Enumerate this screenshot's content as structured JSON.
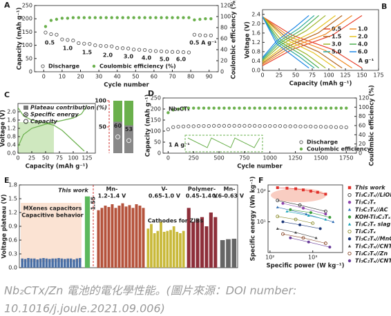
{
  "chart_data": [
    {
      "type": "scatter",
      "panel": "A",
      "xlabel": "Cycle number",
      "ylabel": "Capacity (mAh g⁻¹)",
      "y2label": "Coulombic efficiency (%)",
      "y2color": "#6ab04c",
      "xlim": [
        -5,
        95
      ],
      "xticks": [
        0,
        10,
        20,
        30,
        40,
        50,
        60,
        70,
        80,
        90
      ],
      "ylim": [
        0,
        250
      ],
      "yticks": [
        0,
        50,
        100,
        150,
        200,
        250
      ],
      "y2lim": [
        0,
        120
      ],
      "y2ticks": [
        0,
        20,
        40,
        60,
        80,
        100,
        120
      ],
      "x": [
        1,
        4,
        7,
        10,
        13,
        16,
        19,
        22,
        25,
        28,
        31,
        34,
        37,
        40,
        43,
        46,
        49,
        52,
        55,
        58,
        61,
        64,
        67,
        70,
        73,
        76,
        79,
        82,
        85,
        88,
        91
      ],
      "series": [
        {
          "name": "Discharge",
          "color": "#555555",
          "marker": "open",
          "values": [
            148,
            142,
            140,
            122,
            120,
            118,
            108,
            106,
            105,
            100,
            98,
            97,
            96,
            90,
            89,
            88,
            84,
            83,
            82,
            79,
            78,
            77,
            76,
            75,
            75,
            74,
            73,
            140,
            138,
            137,
            137
          ]
        },
        {
          "name": "Coulombic efficiency (%)",
          "color": "#6ab04c",
          "marker": "circle",
          "axis": "y2",
          "values": [
            82,
            93,
            95,
            97,
            97,
            98,
            98,
            98,
            98,
            98,
            98,
            98,
            98,
            98,
            98,
            98,
            98,
            98,
            98,
            98,
            98,
            98,
            98,
            98,
            98,
            98,
            98,
            94,
            95,
            96,
            96
          ]
        }
      ],
      "annotations": [
        {
          "text": "0.5"
        },
        {
          "text": "1.0"
        },
        {
          "text": "1.5"
        },
        {
          "text": "2.0"
        },
        {
          "text": "3.0"
        },
        {
          "text": "4.0"
        },
        {
          "text": "5.0"
        },
        {
          "text": "6.0"
        },
        {
          "text": "0.5 A g⁻¹"
        }
      ]
    },
    {
      "type": "line",
      "panel": "B",
      "xlabel": "Capacity (mAh g⁻¹)",
      "ylabel": "Voltage (V)",
      "xlim": [
        0,
        175
      ],
      "xticks": [
        0,
        25,
        50,
        75,
        100,
        125,
        150,
        175
      ],
      "ylim": [
        0,
        2.6
      ],
      "yticks": [
        {
          "value": 0,
          "label": "0.0"
        },
        0.4,
        0.8,
        1.2,
        1.6,
        {
          "value": 2,
          "label": "2.0"
        },
        2.4
      ],
      "series": [
        {
          "name": "0.5",
          "color": "#e8412c",
          "x": [
            0,
            45,
            105,
            150,
            null,
            0,
            45,
            105,
            150
          ],
          "values": [
            2.3,
            1.5,
            0.9,
            0.1,
            null,
            0.2,
            0.9,
            1.5,
            2.35
          ]
        },
        {
          "name": "1.0",
          "color": "#f08a24",
          "x": [
            0,
            40,
            95,
            135,
            null,
            0,
            40,
            95,
            135
          ],
          "values": [
            2.3,
            1.45,
            0.85,
            0.1,
            null,
            0.25,
            0.95,
            1.55,
            2.35
          ]
        },
        {
          "name": "1.5",
          "color": "#b5651d",
          "x": [
            0,
            36,
            84,
            120,
            null,
            0,
            36,
            84,
            120
          ],
          "values": [
            2.3,
            1.4,
            0.8,
            0.1,
            null,
            0.3,
            1.0,
            1.6,
            2.35
          ]
        },
        {
          "name": "2.0",
          "color": "#e6c220",
          "x": [
            0,
            33,
            77,
            110,
            null,
            0,
            33,
            77,
            110
          ],
          "values": [
            2.3,
            1.35,
            0.75,
            0.1,
            null,
            0.35,
            1.05,
            1.65,
            2.35
          ]
        },
        {
          "name": "3.0",
          "color": "#9fb52a",
          "x": [
            0,
            28,
            66,
            95,
            null,
            0,
            28,
            66,
            95
          ],
          "values": [
            2.3,
            1.3,
            0.7,
            0.1,
            null,
            0.4,
            1.1,
            1.7,
            2.35
          ]
        },
        {
          "name": "4.0",
          "color": "#4caf50",
          "x": [
            0,
            25,
            60,
            85,
            null,
            0,
            25,
            60,
            85
          ],
          "values": [
            2.3,
            1.25,
            0.65,
            0.1,
            null,
            0.45,
            1.15,
            1.75,
            2.35
          ]
        },
        {
          "name": "5.0",
          "color": "#26a69a",
          "x": [
            0,
            23,
            55,
            78,
            null,
            0,
            23,
            55,
            78
          ],
          "values": [
            2.3,
            1.2,
            0.6,
            0.1,
            null,
            0.5,
            1.2,
            1.8,
            2.35
          ]
        },
        {
          "name": "6.0",
          "color": "#1e88e5",
          "x": [
            0,
            21,
            49,
            70,
            null,
            0,
            21,
            49,
            70
          ],
          "values": [
            2.3,
            1.15,
            0.55,
            0.1,
            null,
            0.55,
            1.25,
            1.85,
            2.35
          ]
        }
      ],
      "annotations": [
        {
          "text": "A g⁻¹"
        }
      ]
    },
    {
      "type": "line",
      "panel": "C",
      "xlabel": "Capacity (mAh g⁻¹)",
      "ylabel": "Voltage (V)",
      "xlim": [
        0,
        140
      ],
      "xticks": [
        0,
        25,
        50,
        75,
        100,
        125
      ],
      "ylim": [
        0,
        2.4
      ],
      "yticks": [
        {
          "value": 0,
          "label": "0.0"
        },
        0.4,
        0.8,
        1.2,
        1.6,
        {
          "value": 2,
          "label": "2.0"
        }
      ],
      "shade": {
        "x": [
          0,
          65
        ],
        "y": [
          0,
          1.5
        ],
        "color": "#cfe8bf"
      },
      "series": [
        {
          "color": "#6ab04c",
          "x": [
            0,
            10,
            25,
            50,
            65,
            80,
            100,
            120
          ],
          "values": [
            2.2,
            1.8,
            1.6,
            1.45,
            1.35,
            1.1,
            0.6,
            0.1
          ]
        },
        {
          "color": "#6ab04c",
          "x": [
            0,
            10,
            25,
            50,
            75,
            100,
            115,
            125
          ],
          "values": [
            0.3,
            0.9,
            1.2,
            1.4,
            1.55,
            1.7,
            1.9,
            2.3
          ]
        }
      ],
      "legend": [
        "Plateau contribution (%)",
        "Specific energy",
        "Capacity"
      ],
      "inset": {
        "values": [
          60,
          53
        ],
        "ylim": [
          0,
          100
        ],
        "yticks": [
          50,
          100
        ],
        "color": "#888888",
        "top_color": "#6ab04c",
        "tick_color": "#d0312d"
      }
    },
    {
      "type": "scatter",
      "panel": "D",
      "xlabel": "Cycle number",
      "ylabel": "Capacity (mAh g⁻¹)",
      "y2label": "Coulombic efficiency (%)",
      "y2color": "#6ab04c",
      "xlim": [
        -50,
        1850
      ],
      "xticks": [
        0,
        250,
        500,
        750,
        1000,
        1250,
        1500,
        1750
      ],
      "ylim": [
        0,
        250
      ],
      "yticks": [
        0,
        50,
        100,
        150,
        200,
        250
      ],
      "y2lim": [
        0,
        120
      ],
      "y2ticks": [
        0,
        20,
        40,
        60,
        80,
        100,
        120
      ],
      "x": [
        0,
        50,
        100,
        150,
        200,
        250,
        300,
        350,
        400,
        450,
        500,
        550,
        600,
        650,
        700,
        750,
        800,
        850,
        900,
        950,
        1000,
        1050,
        1100,
        1150,
        1200,
        1250,
        1300,
        1350,
        1400,
        1450,
        1500,
        1550,
        1600,
        1650,
        1700,
        1750
      ],
      "series": [
        {
          "name": "Discharge",
          "color": "#555555",
          "marker": "open",
          "values": [
            108,
            118,
            120,
            121,
            122,
            122,
            123,
            123,
            123,
            124,
            124,
            124,
            124,
            124,
            124,
            124,
            124,
            124,
            123,
            123,
            123,
            123,
            123,
            122,
            122,
            122,
            121,
            121,
            121,
            120,
            120,
            119,
            119,
            118,
            118,
            117
          ]
        },
        {
          "name": "Coulombic efficiency",
          "color": "#6ab04c",
          "marker": "circle",
          "axis": "y2",
          "values": [
            88,
            94,
            96,
            97,
            98,
            98,
            98,
            98,
            98,
            98,
            98,
            98,
            98,
            98,
            98,
            98,
            98,
            98,
            98,
            98,
            98,
            98,
            98,
            98,
            98,
            98,
            98,
            98,
            98,
            98,
            98,
            98,
            98,
            98,
            98,
            98
          ]
        }
      ],
      "annotations": [
        {
          "text": "Nb₂CTₓ"
        },
        {
          "text": "1 A g⁻¹"
        }
      ]
    },
    {
      "type": "bar",
      "panel": "E",
      "ylabel": "Voltage plateau (V)",
      "ylim": [
        0,
        1.8
      ],
      "yticks": [
        {
          "value": 0,
          "label": "0.0"
        },
        0.3,
        0.6,
        0.9,
        1.2,
        1.5,
        1.8
      ],
      "series": [
        {
          "color": "#4a6fa5",
          "values": [
            0.2,
            0.19,
            0.21,
            0.2,
            0.2,
            0.18,
            0.2,
            0.21,
            0.2,
            0.19,
            0.2,
            0.2,
            0.21,
            0.2,
            0.19,
            0.2,
            0.2,
            0.18,
            0.2,
            0.21
          ]
        },
        {
          "color": "#5cb85c",
          "values": [
            1.55
          ]
        },
        {
          "color": "#b5533c",
          "values": [
            1.25,
            1.3,
            1.35,
            1.32,
            1.38,
            1.3,
            1.35,
            1.4,
            1.33,
            1.36,
            1.3,
            1.38,
            1.35,
            1.3
          ]
        },
        {
          "color": "#c9b93a",
          "values": [
            0.85,
            0.95,
            0.75,
            0.8,
            1.0,
            0.78,
            0.8,
            0.82,
            0.9,
            0.78,
            0.75,
            0.8
          ]
        },
        {
          "color": "#8e2f3a",
          "values": [
            1.3,
            1.0,
            1.05,
            1.1,
            0.9,
            1.2,
            1.1
          ]
        },
        {
          "color": "#666666",
          "values": [
            0.6,
            0.62,
            0.63
          ]
        }
      ],
      "annotations": [
        {
          "text": "This work",
          "color": "#d0312d"
        },
        {
          "text": "MXenes capacitors",
          "color": "#7f93b5"
        },
        {
          "text": "Capacitive behavior",
          "color": "#7f93b5"
        },
        {
          "text": "Mn-",
          "color": "#b5533c"
        },
        {
          "text": "1.2-1.4 V",
          "color": "#e08a2c"
        },
        {
          "text": "V-",
          "color": "#9fb52a"
        },
        {
          "text": "0.65-1.0 V",
          "color": "#c9b93a"
        },
        {
          "text": "Polymer-",
          "color": "#d0312d"
        },
        {
          "text": "0.45-1.4 V",
          "color": "#d0312d"
        },
        {
          "text": "Mn-",
          "color": "#333333"
        },
        {
          "text": "0.6-0.63 V",
          "color": "#333333"
        },
        {
          "text": "Cathodes for ZIBs",
          "color": "#222222"
        }
      ]
    },
    {
      "type": "scatter",
      "panel": "F",
      "xlabel": "Specific power (W kg⁻¹)",
      "ylabel": "Specific energy (Wh kg⁻¹)",
      "xscale": "log",
      "yscale": "log",
      "xlim": [
        90,
        5000
      ],
      "xticks": [
        {
          "value": 100,
          "label": "10²"
        },
        {
          "value": 1000,
          "label": "10³"
        }
      ],
      "ylim": [
        1,
        160
      ],
      "yticks": [
        {
          "value": 10,
          "label": "10¹"
        },
        {
          "value": 100,
          "label": "10²"
        }
      ],
      "series": [
        {
          "name": "This work",
          "color": "#e0302a",
          "marker": "square",
          "x": [
            150,
            250,
            400,
            600,
            900,
            1300,
            2000
          ],
          "values": [
            130,
            125,
            120,
            110,
            100,
            92,
            80
          ]
        },
        {
          "name": "Ti₃C₂Tₓ//LiOH",
          "color": "#333333",
          "marker": "open",
          "x": [
            150,
            500,
            2000
          ],
          "values": [
            50,
            35,
            22
          ]
        },
        {
          "name": "Ti₃C₂Tₓ",
          "color": "#8e44ad",
          "marker": "circle",
          "x": [
            200,
            600,
            2000
          ],
          "values": [
            40,
            28,
            18
          ]
        },
        {
          "name": "Ti₃C₂Tₓ//AC",
          "color": "#2e6db4",
          "marker": "triangle",
          "x": [
            150,
            700,
            3000
          ],
          "values": [
            30,
            18,
            10
          ]
        },
        {
          "name": "KOH-Ti₃C₂Tₓ",
          "color": "#3a9d3a",
          "marker": "circle",
          "x": [
            300,
            900,
            2500
          ],
          "values": [
            25,
            20,
            14
          ]
        },
        {
          "name": "Ti₃C₂Tₓ slag",
          "color": "#17a2b8",
          "marker": "triangle",
          "x": [
            250,
            800,
            2000
          ],
          "values": [
            22,
            16,
            12
          ]
        },
        {
          "name": "Ti₃C₂Tₓ",
          "color": "#8a8a2a",
          "marker": "open",
          "x": [
            150,
            400,
            1000
          ],
          "values": [
            15,
            12,
            9
          ]
        },
        {
          "name": "Ti₃C₂Tₓ//MnO₂",
          "color": "#1f3a7a",
          "marker": "circle",
          "x": [
            200,
            500,
            1500
          ],
          "values": [
            10,
            8,
            6
          ]
        },
        {
          "name": "Ti₃C₂Tₓ//CNT",
          "color": "#444444",
          "marker": "triangle",
          "x": [
            150,
            400,
            1200
          ],
          "values": [
            6,
            4.5,
            3
          ]
        },
        {
          "name": "Ti₃C₂Tₓ//Zn",
          "color": "#8b4a2b",
          "marker": "open",
          "x": [
            200,
            600,
            2000
          ],
          "values": [
            4,
            3,
            2
          ]
        },
        {
          "name": "Ti₃C₂Tₓ//CNT",
          "color": "#6a3d9a",
          "marker": "circle",
          "x": [
            300,
            800,
            2500
          ],
          "values": [
            3,
            2.2,
            1.5
          ]
        }
      ]
    }
  ],
  "caption": [
    "Nb₂CTx/Zn 電池的電化學性能。(圖片來源：DOI number:",
    "10.1016/j.joule.2021.09.006)"
  ]
}
